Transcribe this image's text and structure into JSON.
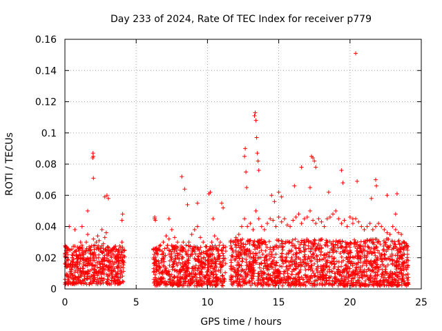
{
  "chart_data": {
    "type": "scatter",
    "title": "Day 233 of 2024, Rate Of TEC Index for receiver p779",
    "xlabel": "GPS time / hours",
    "ylabel": "ROTI / TECUs",
    "xlim": [
      0,
      25
    ],
    "ylim": [
      0,
      0.16
    ],
    "xticks": [
      0,
      5,
      10,
      15,
      20,
      25
    ],
    "yticks": [
      0,
      0.02,
      0.04,
      0.06,
      0.08,
      0.1,
      0.12,
      0.14,
      0.16
    ],
    "xtick_labels": [
      "0",
      "5",
      "10",
      "15",
      "20",
      "25"
    ],
    "ytick_labels": [
      "0",
      "0.02",
      "0.04",
      "0.06",
      "0.08",
      "0.1",
      "0.12",
      "0.14",
      "0.16"
    ],
    "grid": true,
    "marker": "plus",
    "color": "#ff0000",
    "series": [
      {
        "name": "ROTI",
        "x": [
          0.1,
          0.2,
          0.3,
          0.4,
          0.5,
          0.6,
          0.7,
          0.8,
          0.9,
          1.0,
          1.1,
          1.2,
          1.3,
          1.4,
          1.5,
          1.6,
          1.7,
          1.8,
          1.9,
          2.0,
          2.1,
          2.2,
          2.3,
          2.4,
          2.5,
          2.6,
          2.7,
          2.8,
          2.9,
          3.0,
          3.1,
          3.2,
          3.3,
          3.4,
          3.5,
          3.6,
          3.7,
          3.8,
          3.9,
          4.0,
          4.1,
          0.3,
          0.7,
          1.2,
          1.6,
          1.95,
          1.97,
          1.99,
          2.0,
          2.8,
          2.95,
          3.05,
          4.0,
          4.05,
          6.3,
          6.5,
          6.7,
          6.9,
          7.1,
          7.3,
          7.5,
          7.7,
          7.9,
          8.1,
          8.3,
          8.5,
          8.7,
          8.9,
          9.1,
          9.3,
          9.5,
          9.7,
          9.9,
          10.1,
          10.3,
          10.5,
          10.7,
          10.9,
          11.1,
          6.3,
          6.35,
          7.3,
          8.2,
          8.4,
          8.6,
          9.3,
          10.1,
          10.2,
          10.4,
          11.0,
          11.1,
          11.8,
          12.0,
          12.2,
          12.4,
          12.6,
          12.8,
          13.0,
          13.2,
          13.4,
          13.6,
          13.8,
          14.0,
          14.2,
          14.4,
          14.6,
          14.8,
          15.0,
          15.2,
          15.4,
          15.6,
          15.8,
          16.0,
          16.2,
          16.4,
          16.6,
          16.8,
          17.0,
          17.2,
          17.4,
          17.6,
          17.8,
          18.0,
          18.2,
          18.4,
          18.6,
          18.8,
          19.0,
          19.2,
          19.4,
          19.6,
          19.8,
          20.0,
          20.2,
          20.4,
          20.6,
          20.8,
          21.0,
          21.2,
          21.4,
          21.6,
          21.8,
          22.0,
          22.2,
          22.4,
          22.6,
          22.8,
          23.0,
          23.2,
          23.4,
          23.6,
          23.8,
          24.0,
          12.6,
          12.65,
          12.7,
          12.75,
          13.3,
          13.35,
          13.4,
          13.45,
          13.5,
          13.55,
          13.6,
          14.5,
          14.7,
          15.0,
          15.2,
          16.1,
          16.6,
          17.2,
          17.3,
          17.4,
          17.5,
          17.6,
          18.5,
          19.4,
          19.5,
          20.2,
          20.4,
          20.5,
          21.5,
          21.8,
          21.85,
          22.6,
          23.2,
          23.3,
          0.2,
          0.5,
          0.9,
          1.3,
          1.7,
          2.1,
          2.5,
          2.9,
          3.3,
          3.7,
          4.05,
          6.4,
          7.0,
          7.6,
          8.0,
          8.8,
          9.4,
          10.0,
          10.6,
          11.2,
          12.1,
          12.9,
          13.7,
          14.3,
          15.1,
          15.9,
          16.7,
          17.5,
          18.3,
          19.1,
          19.9,
          20.7,
          21.3,
          22.1,
          22.9,
          23.7
        ],
        "y": [
          0.018,
          0.022,
          0.025,
          0.016,
          0.02,
          0.019,
          0.024,
          0.021,
          0.017,
          0.026,
          0.03,
          0.028,
          0.022,
          0.024,
          0.03,
          0.035,
          0.027,
          0.025,
          0.023,
          0.032,
          0.028,
          0.03,
          0.034,
          0.031,
          0.026,
          0.038,
          0.029,
          0.033,
          0.036,
          0.027,
          0.025,
          0.024,
          0.023,
          0.022,
          0.021,
          0.02,
          0.024,
          0.022,
          0.02,
          0.03,
          0.018,
          0.04,
          0.038,
          0.04,
          0.05,
          0.084,
          0.087,
          0.085,
          0.071,
          0.059,
          0.06,
          0.058,
          0.044,
          0.048,
          0.045,
          0.025,
          0.028,
          0.03,
          0.034,
          0.032,
          0.038,
          0.033,
          0.03,
          0.025,
          0.03,
          0.028,
          0.03,
          0.035,
          0.038,
          0.04,
          0.033,
          0.03,
          0.027,
          0.025,
          0.03,
          0.034,
          0.032,
          0.03,
          0.028,
          0.046,
          0.044,
          0.045,
          0.072,
          0.064,
          0.054,
          0.055,
          0.061,
          0.062,
          0.045,
          0.055,
          0.052,
          0.03,
          0.033,
          0.035,
          0.04,
          0.045,
          0.04,
          0.042,
          0.038,
          0.05,
          0.045,
          0.04,
          0.038,
          0.042,
          0.045,
          0.044,
          0.04,
          0.046,
          0.043,
          0.045,
          0.041,
          0.04,
          0.044,
          0.046,
          0.048,
          0.042,
          0.045,
          0.046,
          0.05,
          0.044,
          0.042,
          0.045,
          0.043,
          0.04,
          0.045,
          0.046,
          0.048,
          0.05,
          0.045,
          0.042,
          0.044,
          0.04,
          0.046,
          0.042,
          0.045,
          0.043,
          0.04,
          0.038,
          0.04,
          0.042,
          0.038,
          0.04,
          0.042,
          0.04,
          0.038,
          0.036,
          0.035,
          0.04,
          0.038,
          0.036,
          0.035,
          0.03,
          0.028,
          0.085,
          0.09,
          0.075,
          0.065,
          0.111,
          0.113,
          0.108,
          0.097,
          0.087,
          0.082,
          0.076,
          0.06,
          0.056,
          0.062,
          0.059,
          0.066,
          0.078,
          0.065,
          0.085,
          0.084,
          0.082,
          0.078,
          0.062,
          0.076,
          0.068,
          0.045,
          0.151,
          0.069,
          0.058,
          0.07,
          0.066,
          0.06,
          0.048,
          0.061,
          0.006,
          0.004,
          0.007,
          0.005,
          0.003,
          0.006,
          0.005,
          0.004,
          0.007,
          0.006,
          0.005,
          0.006,
          0.004,
          0.005,
          0.006,
          0.004,
          0.005,
          0.006,
          0.004,
          0.005,
          0.006,
          0.005,
          0.004,
          0.006,
          0.005,
          0.004,
          0.006,
          0.005,
          0.007,
          0.006,
          0.005,
          0.004,
          0.006,
          0.005,
          0.004,
          0.006
        ]
      }
    ],
    "bands": [
      {
        "x_range": [
          0.0,
          4.2
        ],
        "y_range": [
          0.003,
          0.028
        ]
      },
      {
        "x_range": [
          6.2,
          11.3
        ],
        "y_range": [
          0.002,
          0.028
        ]
      },
      {
        "x_range": [
          11.6,
          24.1
        ],
        "y_range": [
          0.002,
          0.032
        ]
      }
    ]
  }
}
